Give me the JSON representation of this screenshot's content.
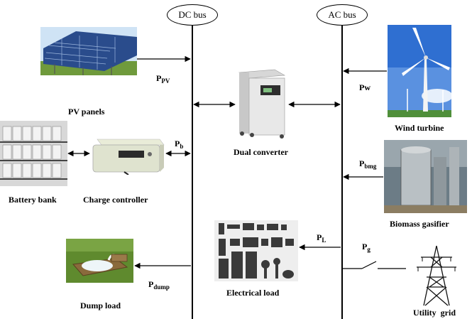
{
  "buses": {
    "dc": "DC bus",
    "ac": "AC bus"
  },
  "components": {
    "pv": "PV panels",
    "battery": "Battery bank",
    "charge": "Charge controller",
    "dump": "Dump load",
    "converter": "Dual converter",
    "load": "Electrical load",
    "wind": "Wind turbine",
    "biomass": "Biomass gasifier",
    "grid": "Utility  grid"
  },
  "powers": {
    "pv": {
      "main": "P",
      "sub": "PV"
    },
    "b": {
      "main": "P",
      "sub": "b"
    },
    "dump": {
      "main": "P",
      "sub": "dump"
    },
    "w": {
      "main": "Pw",
      "sub": ""
    },
    "bmg": {
      "main": "P",
      "sub": "bmg"
    },
    "l": {
      "main": "P",
      "sub": "L"
    },
    "g": {
      "main": "P",
      "sub": "g"
    }
  }
}
